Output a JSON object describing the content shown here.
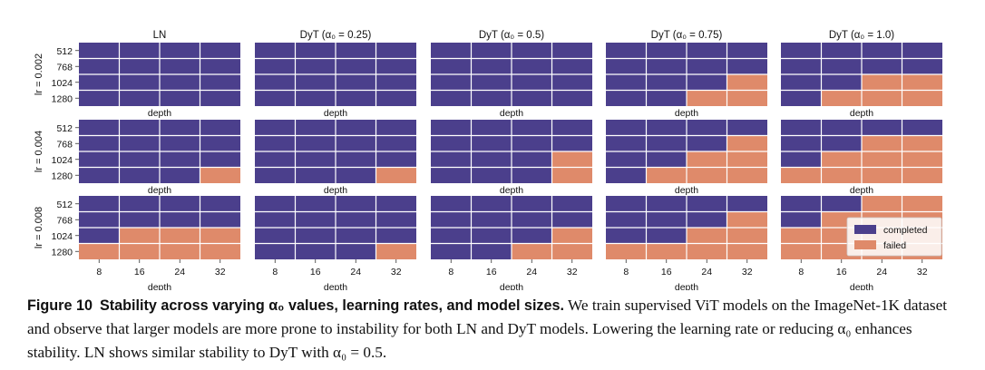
{
  "chart_data": {
    "type": "heatmap",
    "panel_titles": [
      "LN",
      "DyT (α₀ = 0.25)",
      "DyT (α₀ = 0.5)",
      "DyT (α₀ = 0.75)",
      "DyT (α₀ = 1.0)"
    ],
    "row_labels": [
      "lr = 0.002",
      "lr = 0.004",
      "lr = 0.008"
    ],
    "x_label": "depth",
    "x_ticks": [
      "8",
      "16",
      "24",
      "32"
    ],
    "y_ticks": [
      "512",
      "768",
      "1024",
      "1280"
    ],
    "legend": [
      {
        "label": "completed",
        "color": "#4b3f8c"
      },
      {
        "label": "failed",
        "color": "#df8a6a"
      }
    ],
    "legend_location": "lower right",
    "value_meaning": "1 = failed, 0 = completed; rows are width 512, 768, 1024, 1280; columns are depth 8, 16, 24, 32",
    "grid": [
      [
        [
          [
            0,
            0,
            0,
            0
          ],
          [
            0,
            0,
            0,
            0
          ],
          [
            0,
            0,
            0,
            0
          ],
          [
            0,
            0,
            0,
            0
          ]
        ],
        [
          [
            0,
            0,
            0,
            0
          ],
          [
            0,
            0,
            0,
            0
          ],
          [
            0,
            0,
            0,
            0
          ],
          [
            0,
            0,
            0,
            0
          ]
        ],
        [
          [
            0,
            0,
            0,
            0
          ],
          [
            0,
            0,
            0,
            0
          ],
          [
            0,
            0,
            0,
            0
          ],
          [
            0,
            0,
            0,
            0
          ]
        ],
        [
          [
            0,
            0,
            0,
            0
          ],
          [
            0,
            0,
            0,
            0
          ],
          [
            0,
            0,
            0,
            1
          ],
          [
            0,
            0,
            1,
            1
          ]
        ],
        [
          [
            0,
            0,
            0,
            0
          ],
          [
            0,
            0,
            0,
            0
          ],
          [
            0,
            0,
            1,
            1
          ],
          [
            0,
            1,
            1,
            1
          ]
        ]
      ],
      [
        [
          [
            0,
            0,
            0,
            0
          ],
          [
            0,
            0,
            0,
            0
          ],
          [
            0,
            0,
            0,
            0
          ],
          [
            0,
            0,
            0,
            1
          ]
        ],
        [
          [
            0,
            0,
            0,
            0
          ],
          [
            0,
            0,
            0,
            0
          ],
          [
            0,
            0,
            0,
            0
          ],
          [
            0,
            0,
            0,
            1
          ]
        ],
        [
          [
            0,
            0,
            0,
            0
          ],
          [
            0,
            0,
            0,
            0
          ],
          [
            0,
            0,
            0,
            1
          ],
          [
            0,
            0,
            0,
            1
          ]
        ],
        [
          [
            0,
            0,
            0,
            0
          ],
          [
            0,
            0,
            0,
            1
          ],
          [
            0,
            0,
            1,
            1
          ],
          [
            0,
            1,
            1,
            1
          ]
        ],
        [
          [
            0,
            0,
            0,
            0
          ],
          [
            0,
            0,
            1,
            1
          ],
          [
            0,
            1,
            1,
            1
          ],
          [
            1,
            1,
            1,
            1
          ]
        ]
      ],
      [
        [
          [
            0,
            0,
            0,
            0
          ],
          [
            0,
            0,
            0,
            0
          ],
          [
            0,
            1,
            1,
            1
          ],
          [
            1,
            1,
            1,
            1
          ]
        ],
        [
          [
            0,
            0,
            0,
            0
          ],
          [
            0,
            0,
            0,
            0
          ],
          [
            0,
            0,
            0,
            0
          ],
          [
            0,
            0,
            0,
            1
          ]
        ],
        [
          [
            0,
            0,
            0,
            0
          ],
          [
            0,
            0,
            0,
            0
          ],
          [
            0,
            0,
            0,
            1
          ],
          [
            0,
            0,
            1,
            1
          ]
        ],
        [
          [
            0,
            0,
            0,
            0
          ],
          [
            0,
            0,
            0,
            1
          ],
          [
            0,
            0,
            1,
            1
          ],
          [
            1,
            1,
            1,
            1
          ]
        ],
        [
          [
            0,
            0,
            1,
            1
          ],
          [
            0,
            1,
            1,
            1
          ],
          [
            1,
            1,
            1,
            1
          ],
          [
            1,
            1,
            1,
            1
          ]
        ]
      ]
    ]
  },
  "caption": {
    "label": "Figure 10",
    "title": "Stability across varying α₀ values, learning rates, and model sizes.",
    "body": "We train supervised ViT models on the ImageNet-1K dataset and observe that larger models are more prone to instability for both LN and DyT models. Lowering the learning rate or reducing α₀ enhances stability. LN shows similar stability to DyT with α₀ = 0.5."
  }
}
